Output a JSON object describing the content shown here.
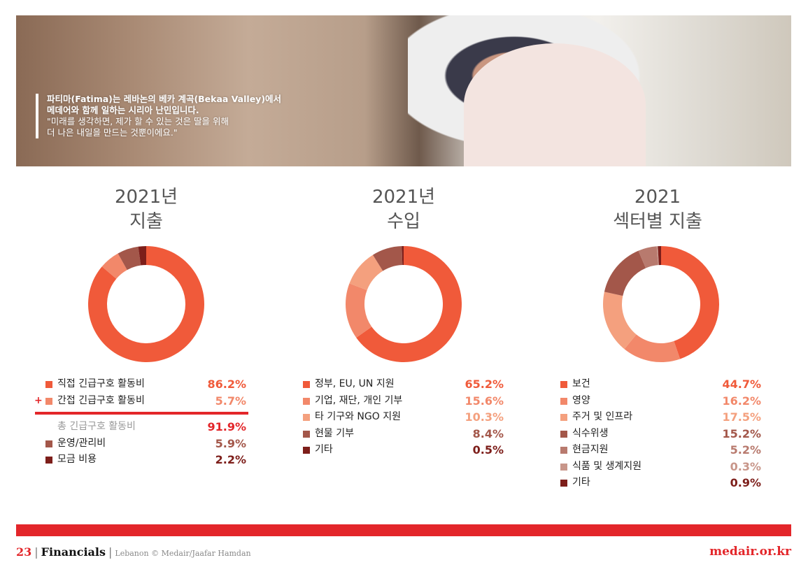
{
  "photo": {
    "caption_lines": [
      "파티마(Fatima)는 레바논의 베카 계곡(Bekaa Valley)에서",
      "메데어와 함께 일하는 시리아 난민입니다.",
      "\"미래를 생각하면, 제가 할 수 있는 것은 딸을 위해",
      "더 나은 내일을 만드는 것뿐이에요.\""
    ]
  },
  "colors": {
    "accent": "#e3262a"
  },
  "chart_data": [
    {
      "type": "pie",
      "title": [
        "2021년",
        "지출"
      ],
      "slices": [
        {
          "label": "직접 긴급구호 활동비",
          "value": 86.2,
          "display": "86.2%",
          "color": "#f05a3a"
        },
        {
          "label": "간접 긴급구호 활동비",
          "value": 5.7,
          "display": "5.7%",
          "color": "#f2886a",
          "prefix": "+"
        },
        {
          "label": "운영/관리비",
          "value": 5.9,
          "display": "5.9%",
          "color": "#a3574a"
        },
        {
          "label": "모금 비용",
          "value": 2.2,
          "display": "2.2%",
          "color": "#7d1e1a"
        }
      ],
      "total": {
        "label": "총 긴급구호 활동비",
        "display": "91.9%",
        "after_index": 1
      }
    },
    {
      "type": "pie",
      "title": [
        "2021년",
        "수입"
      ],
      "slices": [
        {
          "label": "정부, EU, UN 지원",
          "value": 65.2,
          "display": "65.2%",
          "color": "#f05a3a"
        },
        {
          "label": "기업, 재단, 개인 기부",
          "value": 15.6,
          "display": "15.6%",
          "color": "#f2886a"
        },
        {
          "label": "타 기구와 NGO 지원",
          "value": 10.3,
          "display": "10.3%",
          "color": "#f4a07e"
        },
        {
          "label": "현물 기부",
          "value": 8.4,
          "display": "8.4%",
          "color": "#a3574a"
        },
        {
          "label": "기타",
          "value": 0.5,
          "display": "0.5%",
          "color": "#7d1e1a"
        }
      ]
    },
    {
      "type": "pie",
      "title": [
        "2021",
        "섹터별 지출"
      ],
      "slices": [
        {
          "label": "보건",
          "value": 44.7,
          "display": "44.7%",
          "color": "#f05a3a"
        },
        {
          "label": "영양",
          "value": 16.2,
          "display": "16.2%",
          "color": "#f2886a"
        },
        {
          "label": "주거 및 인프라",
          "value": 17.5,
          "display": "17.5%",
          "color": "#f4a07e"
        },
        {
          "label": "식수위생",
          "value": 15.2,
          "display": "15.2%",
          "color": "#a3574a"
        },
        {
          "label": "현금지원",
          "value": 5.2,
          "display": "5.2%",
          "color": "#b87a6e"
        },
        {
          "label": "식품 및 생계지원",
          "value": 0.3,
          "display": "0.3%",
          "color": "#c8968a"
        },
        {
          "label": "기타",
          "value": 0.9,
          "display": "0.9%",
          "color": "#7d1e1a"
        }
      ]
    }
  ],
  "footer": {
    "page": "23",
    "section": "Financials",
    "credit": "Lebanon © Medair/Jaafar Hamdan",
    "separator": "|",
    "website": "medair.or.kr"
  }
}
